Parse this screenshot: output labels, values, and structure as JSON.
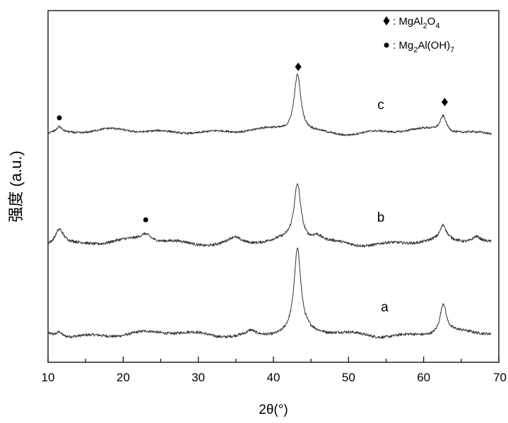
{
  "chart_data": {
    "type": "line",
    "title": "",
    "xlabel": "2θ(°)",
    "ylabel": "强度 (a.u.)",
    "xlim": [
      10,
      70
    ],
    "x_ticks": [
      "10",
      "20",
      "30",
      "40",
      "50",
      "60",
      "70"
    ],
    "y_ticks": [],
    "grid": false,
    "legend": {
      "placement": "top-right",
      "entries": [
        {
          "marker": "diamond",
          "text": ": MgAl",
          "sub1": "2",
          "mid": "O",
          "sub2": "4"
        },
        {
          "marker": "circle",
          "text": ": Mg",
          "sub1": "2",
          "mid": "Al(OH)",
          "sub2": "7"
        }
      ]
    },
    "series": [
      {
        "name": "a",
        "baseline": 0.08,
        "noise": 0.004,
        "peaks": [
          {
            "x": 11.5,
            "h": 0.012,
            "w": 0.4
          },
          {
            "x": 37.0,
            "h": 0.012,
            "w": 0.6
          },
          {
            "x": 43.2,
            "h": 0.235,
            "w": 0.55
          },
          {
            "x": 62.6,
            "h": 0.085,
            "w": 0.5
          }
        ],
        "markers": []
      },
      {
        "name": "b",
        "baseline": 0.34,
        "noise": 0.004,
        "peaks": [
          {
            "x": 11.5,
            "h": 0.045,
            "w": 0.7
          },
          {
            "x": 23.0,
            "h": 0.022,
            "w": 0.9
          },
          {
            "x": 34.8,
            "h": 0.016,
            "w": 1.0
          },
          {
            "x": 43.2,
            "h": 0.16,
            "w": 0.55
          },
          {
            "x": 45.8,
            "h": 0.018,
            "w": 0.8
          },
          {
            "x": 62.6,
            "h": 0.04,
            "w": 0.5
          },
          {
            "x": 67.0,
            "h": 0.018,
            "w": 0.7
          }
        ],
        "markers": [
          {
            "type": "circle",
            "x": 23.0,
            "y": 0.405
          }
        ]
      },
      {
        "name": "c",
        "baseline": 0.655,
        "noise": 0.003,
        "peaks": [
          {
            "x": 11.5,
            "h": 0.015,
            "w": 0.4
          },
          {
            "x": 29.0,
            "h": 0.006,
            "w": 2.5
          },
          {
            "x": 43.2,
            "h": 0.165,
            "w": 0.55
          },
          {
            "x": 62.6,
            "h": 0.045,
            "w": 0.5
          }
        ],
        "markers": [
          {
            "type": "circle",
            "x": 11.5,
            "y": 0.695
          },
          {
            "type": "diamond",
            "x": 43.3,
            "y": 0.84
          },
          {
            "type": "diamond",
            "x": 62.8,
            "y": 0.74
          }
        ]
      }
    ],
    "curve_labels": [
      {
        "text": "a",
        "x": 54.8,
        "y": 0.145
      },
      {
        "text": "b",
        "x": 54.3,
        "y": 0.4
      },
      {
        "text": "c",
        "x": 54.3,
        "y": 0.72
      }
    ]
  }
}
